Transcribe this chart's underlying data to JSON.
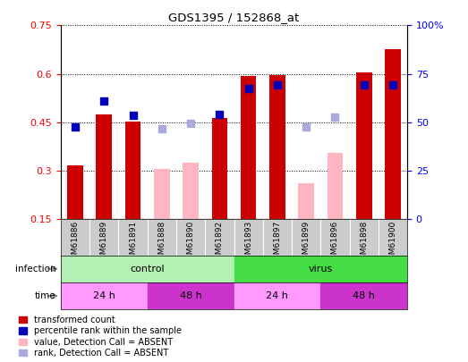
{
  "title": "GDS1395 / 152868_at",
  "samples": [
    "GSM61886",
    "GSM61889",
    "GSM61891",
    "GSM61888",
    "GSM61890",
    "GSM61892",
    "GSM61893",
    "GSM61897",
    "GSM61899",
    "GSM61896",
    "GSM61898",
    "GSM61900"
  ],
  "transformed_count": [
    0.315,
    0.475,
    0.452,
    null,
    null,
    0.462,
    0.592,
    0.597,
    null,
    null,
    0.605,
    0.675
  ],
  "transformed_count_absent": [
    null,
    null,
    null,
    0.305,
    0.325,
    null,
    null,
    null,
    0.26,
    0.355,
    null,
    null
  ],
  "percentile_rank": [
    0.435,
    0.515,
    0.47,
    null,
    null,
    0.475,
    0.555,
    0.565,
    null,
    null,
    0.565,
    0.565
  ],
  "percentile_rank_absent": [
    null,
    null,
    null,
    0.43,
    0.445,
    null,
    null,
    null,
    0.435,
    0.465,
    null,
    null
  ],
  "infection_groups": [
    {
      "label": "control",
      "start": 0,
      "end": 6,
      "color": "#b3f0b3"
    },
    {
      "label": "virus",
      "start": 6,
      "end": 12,
      "color": "#44dd44"
    }
  ],
  "time_groups": [
    {
      "label": "24 h",
      "start": 0,
      "end": 3,
      "color": "#ff99ff"
    },
    {
      "label": "48 h",
      "start": 3,
      "end": 6,
      "color": "#cc33cc"
    },
    {
      "label": "24 h",
      "start": 6,
      "end": 9,
      "color": "#ff99ff"
    },
    {
      "label": "48 h",
      "start": 9,
      "end": 12,
      "color": "#cc33cc"
    }
  ],
  "ylim_left": [
    0.15,
    0.75
  ],
  "ylim_right": [
    0,
    100
  ],
  "yticks_left": [
    0.15,
    0.3,
    0.45,
    0.6,
    0.75
  ],
  "yticks_right": [
    0,
    25,
    50,
    75,
    100
  ],
  "ytick_labels_left": [
    "0.15",
    "0.3",
    "0.45",
    "0.6",
    "0.75"
  ],
  "ytick_labels_right": [
    "0",
    "25",
    "50",
    "75",
    "100%"
  ],
  "bar_color_red": "#CC0000",
  "bar_color_pink": "#FFB6C1",
  "dot_color_blue": "#0000BB",
  "dot_color_lightblue": "#aaaadd",
  "bar_width": 0.55,
  "sample_col_color": "#cccccc",
  "legend_labels": [
    "transformed count",
    "percentile rank within the sample",
    "value, Detection Call = ABSENT",
    "rank, Detection Call = ABSENT"
  ]
}
